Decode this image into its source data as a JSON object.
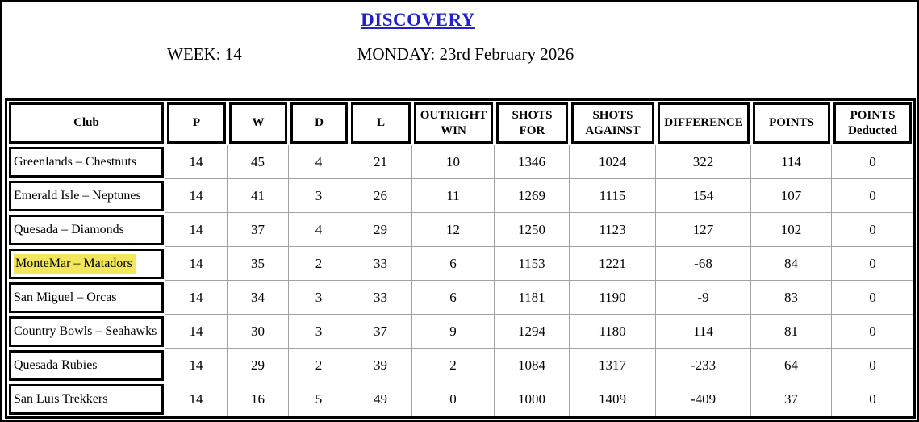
{
  "page": {
    "title": "DISCOVERY",
    "week_label": "WEEK: 14",
    "date_label": "MONDAY: 23rd February 2026"
  },
  "colors": {
    "title_blue": "#2121CE",
    "highlight_yellow": "#F3E65A",
    "grid_line_gray": "#A3A3A3",
    "border_black": "#000000"
  },
  "table": {
    "column_headers": [
      "Club",
      "P",
      "W",
      "D",
      "L",
      "OUTRIGHT\nWIN",
      "SHOTS\nFOR",
      "SHOTS\nAGAINST",
      "DIFFERENCE",
      "POINTS",
      "POINTS\nDeducted"
    ],
    "rows": [
      {
        "club": "Greenlands – Chestnuts",
        "highlighted": false,
        "values": [
          "14",
          "45",
          "4",
          "21",
          "10",
          "1346",
          "1024",
          "322",
          "114",
          "0"
        ]
      },
      {
        "club": "Emerald Isle – Neptunes",
        "highlighted": false,
        "values": [
          "14",
          "41",
          "3",
          "26",
          "11",
          "1269",
          "1115",
          "154",
          "107",
          "0"
        ]
      },
      {
        "club": "Quesada – Diamonds",
        "highlighted": false,
        "values": [
          "14",
          "37",
          "4",
          "29",
          "12",
          "1250",
          "1123",
          "127",
          "102",
          "0"
        ]
      },
      {
        "club": "MonteMar – Matadors",
        "highlighted": true,
        "values": [
          "14",
          "35",
          "2",
          "33",
          "6",
          "1153",
          "1221",
          "-68",
          "84",
          "0"
        ]
      },
      {
        "club": "San Miguel – Orcas",
        "highlighted": false,
        "values": [
          "14",
          "34",
          "3",
          "33",
          "6",
          "1181",
          "1190",
          "-9",
          "83",
          "0"
        ]
      },
      {
        "club": "Country Bowls – Seahawks",
        "highlighted": false,
        "values": [
          "14",
          "30",
          "3",
          "37",
          "9",
          "1294",
          "1180",
          "114",
          "81",
          "0"
        ]
      },
      {
        "club": "Quesada Rubies",
        "highlighted": false,
        "values": [
          "14",
          "29",
          "2",
          "39",
          "2",
          "1084",
          "1317",
          "-233",
          "64",
          "0"
        ]
      },
      {
        "club": "San Luis Trekkers",
        "highlighted": false,
        "values": [
          "14",
          "16",
          "5",
          "49",
          "0",
          "1000",
          "1409",
          "-409",
          "37",
          "0"
        ]
      }
    ]
  }
}
